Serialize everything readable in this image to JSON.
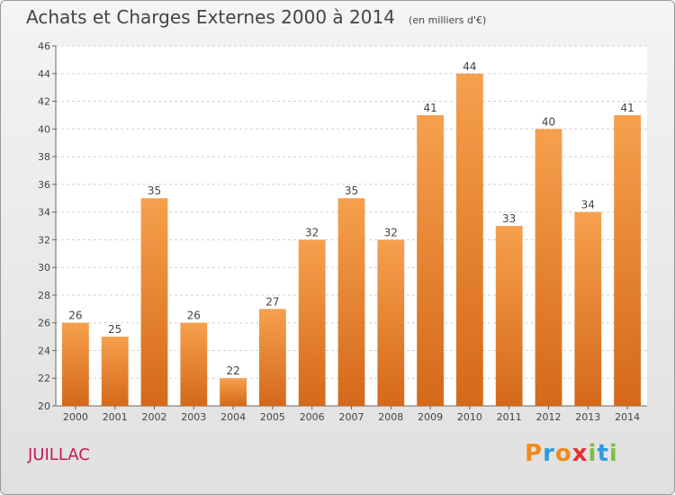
{
  "chart_data": {
    "type": "bar",
    "title": "Achats et Charges Externes 2000 à 2014",
    "unit_note": "(en milliers d'€)",
    "categories": [
      "2000",
      "2001",
      "2002",
      "2003",
      "2004",
      "2005",
      "2006",
      "2007",
      "2008",
      "2009",
      "2010",
      "2011",
      "2012",
      "2013",
      "2014"
    ],
    "values": [
      26,
      25,
      35,
      26,
      22,
      27,
      32,
      35,
      32,
      41,
      44,
      33,
      40,
      34,
      41
    ],
    "ylim": [
      20,
      46
    ],
    "yticks": [
      20,
      22,
      24,
      26,
      28,
      30,
      32,
      34,
      36,
      38,
      40,
      42,
      44,
      46
    ],
    "grid": true,
    "bar_color_top": "#f6a04d",
    "bar_color_bottom": "#d4691a"
  },
  "commune": "JUILLAC",
  "logo": {
    "text": "Proxiti",
    "letters": [
      "P",
      "r",
      "o",
      "x",
      "i",
      "t",
      "i"
    ],
    "colors": [
      "#f08c1a",
      "#2d9be0",
      "#f08c1a",
      "#e23030",
      "#7cc242",
      "#2d9be0",
      "#7cc242"
    ]
  }
}
